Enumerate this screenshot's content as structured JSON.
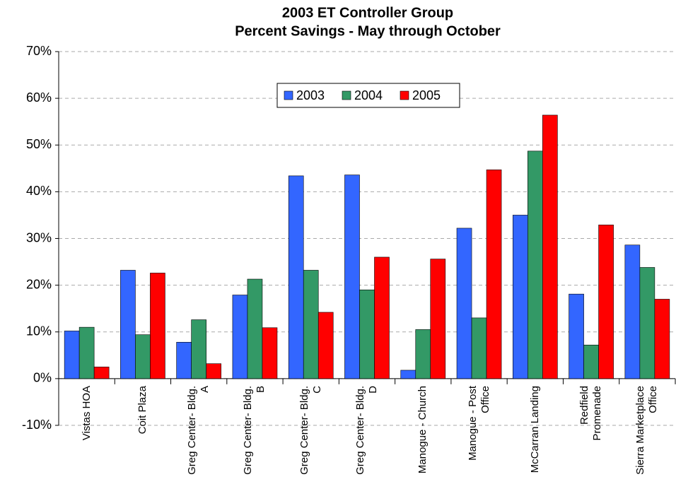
{
  "chart_data": {
    "type": "bar",
    "title": "2003 ET Controller Group",
    "subtitle": "Percent Savings - May through October",
    "categories": [
      "Vistas HOA",
      "Coit Plaza",
      "Greg Center- Bldg.\nA",
      "Greg Center- Bldg.\nB",
      "Greg Center- Bldg.\nC",
      "Greg Center- Bldg.\nD",
      "Manogue - Church",
      "Manogue - Post\nOffice",
      "McCarran Landing",
      "Redfield\nPromenade",
      "Sierra Marketplace\nOffice"
    ],
    "series": [
      {
        "name": "2003",
        "color": "#3366ff",
        "values": [
          10.2,
          23.2,
          7.8,
          17.9,
          43.4,
          43.6,
          1.8,
          32.2,
          35.0,
          18.1,
          28.6
        ]
      },
      {
        "name": "2004",
        "color": "#339966",
        "values": [
          11.0,
          9.4,
          12.6,
          21.3,
          23.2,
          19.0,
          10.5,
          13.0,
          48.7,
          7.2,
          23.8
        ]
      },
      {
        "name": "2005",
        "color": "#ff0000",
        "values": [
          2.5,
          22.6,
          3.2,
          10.9,
          14.2,
          26.0,
          25.6,
          44.7,
          56.4,
          32.9,
          17.0
        ]
      }
    ],
    "ylim": [
      -10,
      70
    ],
    "yticks": [
      {
        "value": -10,
        "label": "-10%"
      },
      {
        "value": 0,
        "label": "0%"
      },
      {
        "value": 10,
        "label": "10%"
      },
      {
        "value": 20,
        "label": "20%"
      },
      {
        "value": 30,
        "label": "30%"
      },
      {
        "value": 40,
        "label": "40%"
      },
      {
        "value": 50,
        "label": "50%"
      },
      {
        "value": 60,
        "label": "60%"
      },
      {
        "value": 70,
        "label": "70%"
      }
    ],
    "grid": true,
    "legend": "top"
  }
}
